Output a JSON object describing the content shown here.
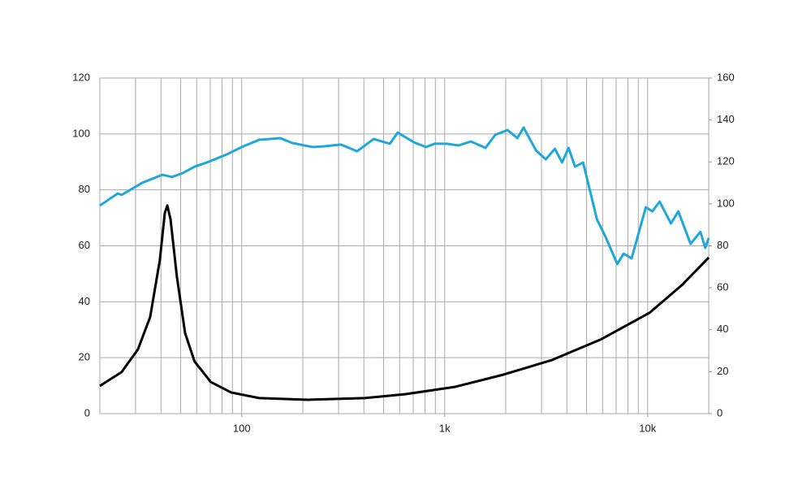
{
  "chart_data": {
    "type": "line",
    "log_x": true,
    "grid": true,
    "xlim": [
      20,
      20000
    ],
    "xticks": [
      100,
      {
        "value": 1000,
        "label": "1k"
      },
      {
        "value": 10000,
        "label": "10k"
      }
    ],
    "ylim": [
      0,
      120
    ],
    "yticks": [
      0,
      20,
      40,
      60,
      80,
      100,
      120
    ],
    "y2lim": [
      0,
      160
    ],
    "y2ticks": [
      0,
      20,
      40,
      60,
      80,
      100,
      120,
      140,
      160
    ],
    "series": [
      {
        "color": "#1ea7d9",
        "x": [
          20,
          24.5,
          25.6,
          32.3,
          40.6,
          45.4,
          51.2,
          58.6,
          67.3,
          84.5,
          102,
          122,
          155,
          177,
          224,
          256,
          308,
          370,
          447,
          537,
          587,
          706,
          811,
          890,
          1020,
          1170,
          1347,
          1590,
          1776,
          2040,
          2280,
          2450,
          2820,
          3150,
          3490,
          3790,
          4080,
          4390,
          4810,
          5630,
          6170,
          7090,
          7620,
          8340,
          9800,
          10540,
          11460,
          13030,
          14170,
          16280,
          18200,
          19240,
          20000
        ],
        "values": [
          74.4,
          78.7,
          78.2,
          82.5,
          85.4,
          84.6,
          86,
          88.3,
          89.8,
          92.7,
          95.6,
          97.9,
          98.5,
          96.8,
          95.3,
          95.6,
          96.2,
          93.8,
          98.2,
          96.5,
          100.5,
          97,
          95.3,
          96.5,
          96.5,
          95.9,
          97.3,
          95,
          99.7,
          101.4,
          98.5,
          102.3,
          94.1,
          90.9,
          94.7,
          89.8,
          95,
          88.3,
          89.8,
          69.4,
          63.6,
          53.5,
          57.2,
          55.5,
          73.8,
          72.3,
          75.8,
          68,
          72.3,
          60.7,
          65,
          59.3,
          62.8
        ]
      },
      {
        "color": "#000000",
        "axis": "y2",
        "x": [
          20,
          25.6,
          30.8,
          35.4,
          39.5,
          41.8,
          43,
          44.6,
          47.9,
          52.6,
          58.6,
          70.4,
          88.6,
          122,
          213,
          404,
          644,
          1130,
          1950,
          3390,
          5860,
          10200,
          14730,
          20000
        ],
        "values": [
          13.2,
          19.8,
          30.6,
          46.1,
          73.2,
          95.7,
          99.2,
          92.6,
          65.5,
          38.4,
          24.8,
          15.1,
          10.1,
          7.4,
          6.6,
          7.4,
          9.3,
          12.8,
          18.6,
          25.6,
          35.3,
          48,
          61.2,
          74.4
        ]
      }
    ]
  }
}
